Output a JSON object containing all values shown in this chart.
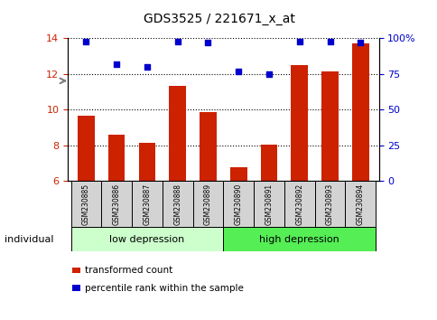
{
  "title": "GDS3525 / 221671_x_at",
  "samples": [
    "GSM230885",
    "GSM230886",
    "GSM230887",
    "GSM230888",
    "GSM230889",
    "GSM230890",
    "GSM230891",
    "GSM230892",
    "GSM230893",
    "GSM230894"
  ],
  "transformed_count": [
    9.65,
    8.6,
    8.15,
    11.35,
    9.85,
    6.75,
    8.05,
    12.5,
    12.15,
    13.7
  ],
  "percentile_rank": [
    98,
    82,
    80,
    98,
    97,
    77,
    75,
    98,
    98,
    97
  ],
  "groups": [
    {
      "label": "low depression",
      "start": 0,
      "end": 5,
      "color": "#ccffcc"
    },
    {
      "label": "high depression",
      "start": 5,
      "end": 10,
      "color": "#55ee55"
    }
  ],
  "ylim_left": [
    6,
    14
  ],
  "ylim_right": [
    0,
    100
  ],
  "yticks_left": [
    6,
    8,
    10,
    12,
    14
  ],
  "yticks_right": [
    0,
    25,
    50,
    75,
    100
  ],
  "ytick_labels_right": [
    "0",
    "25",
    "50",
    "75",
    "100%"
  ],
  "bar_color": "#cc2200",
  "dot_color": "#0000cc",
  "bar_bottom": 6,
  "legend_red_label": "transformed count",
  "legend_blue_label": "percentile rank within the sample",
  "individual_label": "individual",
  "grid_color": "#000000",
  "background_color": "#ffffff",
  "tick_label_color_left": "#cc2200",
  "tick_label_color_right": "#0000cc",
  "sample_bg_color": "#d3d3d3",
  "bar_width": 0.55
}
